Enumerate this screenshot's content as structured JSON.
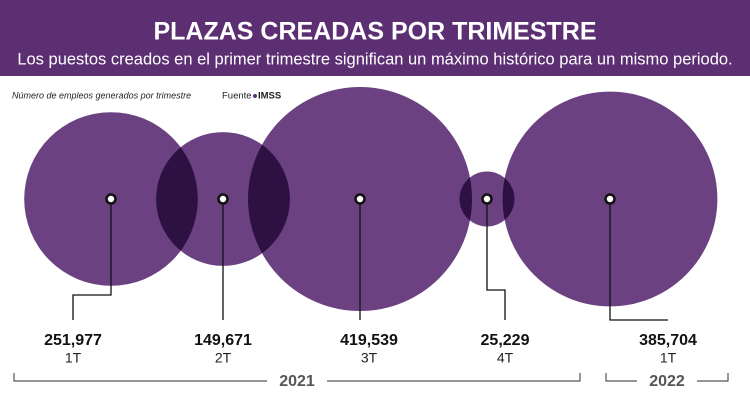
{
  "chart_data": {
    "type": "bubble",
    "title": "PLAZAS CREADAS POR TRIMESTRE",
    "subtitle": "Los puestos creados en el primer trimestre significan un máximo histórico para un mismo periodo.",
    "note": "Número de empleos generados por trimestre",
    "source_label": "Fuente",
    "source": "IMSS",
    "categories": [
      "1T",
      "2T",
      "3T",
      "4T",
      "1T"
    ],
    "values": [
      251977,
      149671,
      419539,
      25229,
      385704
    ],
    "value_labels": [
      "251,977",
      "149,671",
      "419,539",
      "25,229",
      "385,704"
    ],
    "color": "#5e3176",
    "groups": [
      {
        "label": "2021",
        "size": 4
      },
      {
        "label": "2022",
        "size": 1
      }
    ]
  }
}
